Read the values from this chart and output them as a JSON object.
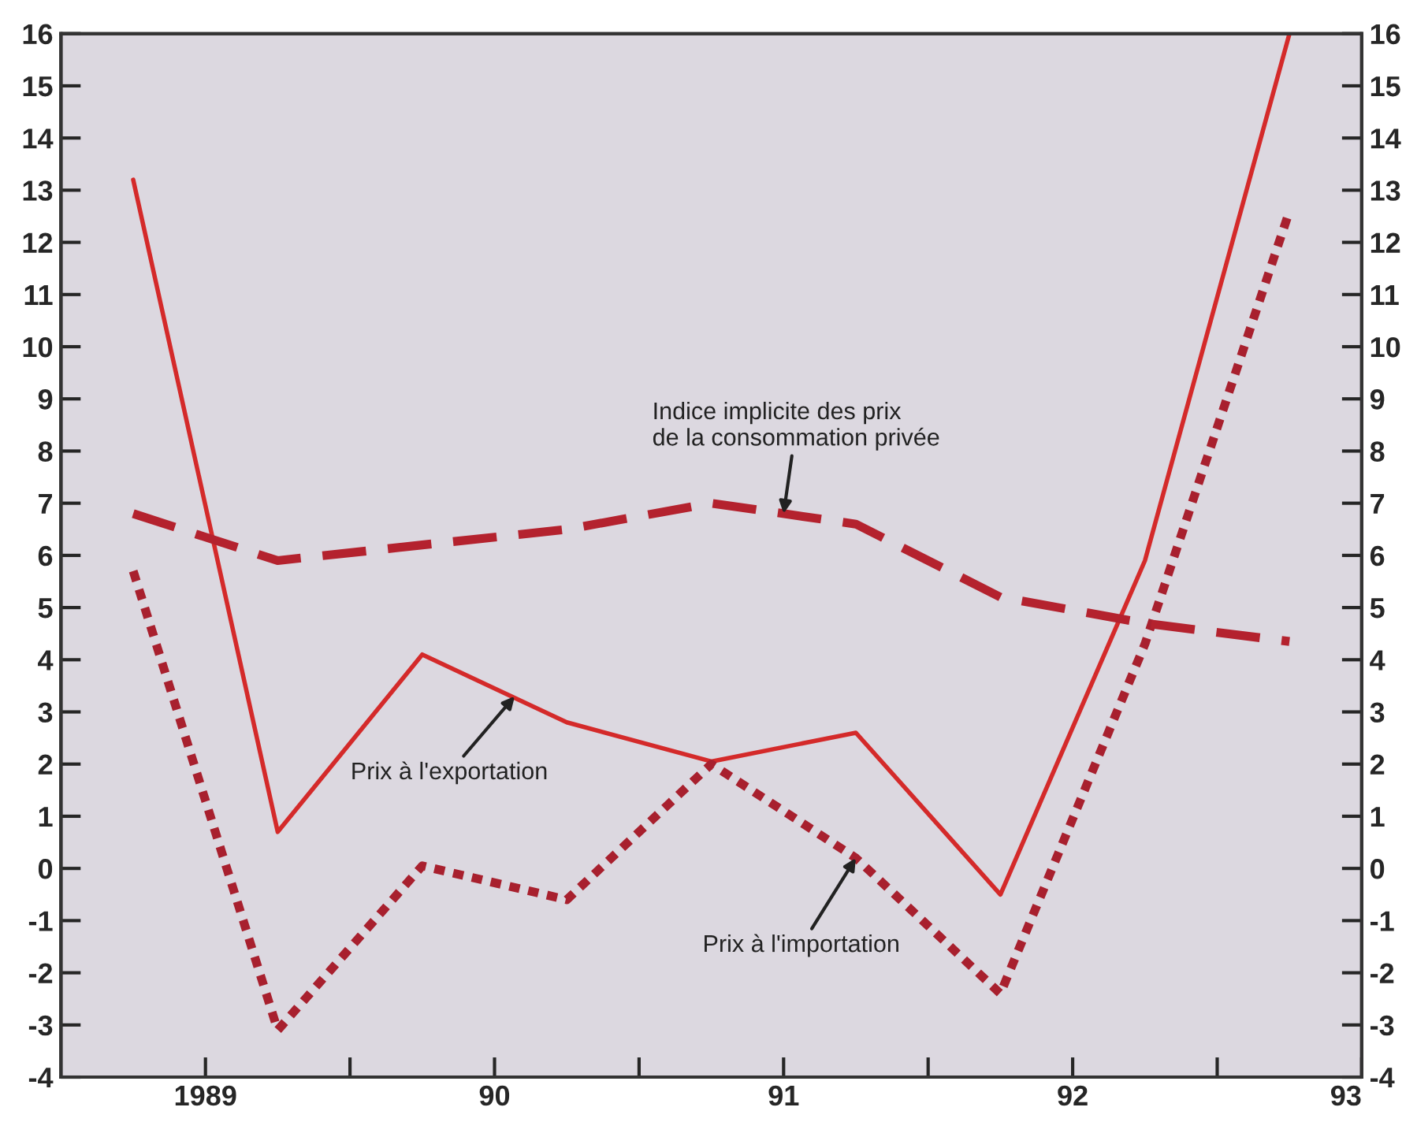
{
  "chart_data": {
    "type": "line",
    "x": [
      1988.75,
      1989.25,
      1989.75,
      1990.25,
      1990.75,
      1991.25,
      1991.75,
      1992.25,
      1992.75
    ],
    "series": [
      {
        "color": "#d42a2a",
        "line_style": "solid",
        "values": [
          13.2,
          0.7,
          4.1,
          2.8,
          2.05,
          2.6,
          -0.5,
          5.9,
          16.0
        ]
      },
      {
        "color": "#a8202e",
        "line_style": "dotted",
        "values": [
          5.7,
          -3.1,
          0.05,
          -0.6,
          2.0,
          0.2,
          -2.4,
          4.3,
          12.6
        ]
      },
      {
        "color": "#b4222e",
        "line_style": "dashed",
        "values": [
          6.8,
          5.9,
          6.2,
          6.5,
          7.0,
          6.6,
          5.2,
          4.7,
          4.35
        ]
      }
    ],
    "annotations": [
      {
        "text": "Indice implicite des prix\nde la consommation privée",
        "x": 1991.0,
        "y": 6.8
      },
      {
        "text": "Prix à l'exportation",
        "x": 1990.07,
        "y": 3.3
      },
      {
        "text": "Prix à l'importation",
        "x": 1991.25,
        "y": 0.2
      }
    ],
    "xlim": [
      1988.5,
      1993.0
    ],
    "xticks": [
      {
        "value": 1989,
        "label": "1989"
      },
      {
        "value": 1989.5,
        "label": null
      },
      {
        "value": 1990,
        "label": "90"
      },
      {
        "value": 1990.5,
        "label": null
      },
      {
        "value": 1991,
        "label": "91"
      },
      {
        "value": 1991.5,
        "label": null
      },
      {
        "value": 1992,
        "label": "92"
      },
      {
        "value": 1992.5,
        "label": null
      },
      {
        "value": 1993,
        "label": "93"
      }
    ],
    "ylim": [
      -4,
      16
    ],
    "yticks": [
      -4,
      -3,
      -2,
      -1,
      0,
      1,
      2,
      3,
      4,
      5,
      6,
      7,
      8,
      9,
      10,
      11,
      12,
      13,
      14,
      15,
      16
    ],
    "y2lim": [
      -4,
      16
    ],
    "y2ticks": [
      -4,
      -3,
      -2,
      -1,
      0,
      1,
      2,
      3,
      4,
      5,
      6,
      7,
      8,
      9,
      10,
      11,
      12,
      13,
      14,
      15,
      16
    ],
    "grid": false,
    "legend": false
  }
}
